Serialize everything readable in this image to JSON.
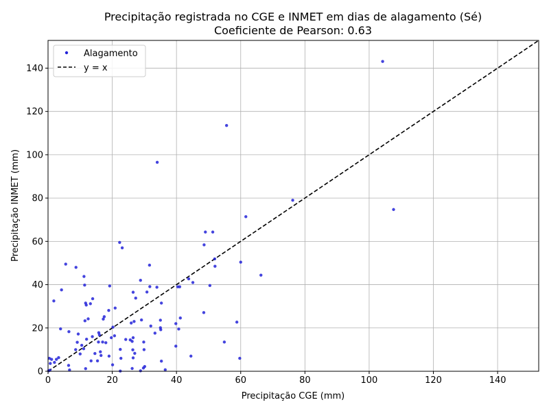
{
  "chart_data": {
    "type": "scatter",
    "title": "Precipitação registrada no CGE e INMET em dias de alagamento (Sé)",
    "subtitle": "Coeficiente de Pearson: 0.63",
    "xlabel": "Precipitação CGE (mm)",
    "ylabel": "Precipitação INMET (mm)",
    "xlim": [
      0,
      152.8
    ],
    "ylim": [
      0,
      152.8
    ],
    "xticks": [
      0,
      20,
      40,
      60,
      80,
      100,
      120,
      140
    ],
    "yticks": [
      0,
      20,
      40,
      60,
      80,
      100,
      120,
      140
    ],
    "grid": true,
    "legend_position": "top-left",
    "legend": [
      "Alagamento",
      "y = x"
    ],
    "colors": {
      "points": "#2323d8",
      "reference_line": "#000000",
      "grid": "#b0b0b0"
    },
    "reference_line": {
      "name": "y = x",
      "style": "dashed"
    },
    "series": [
      {
        "name": "Alagamento",
        "points": [
          [
            104.2,
            143.1
          ],
          [
            55.6,
            113.5
          ],
          [
            34.0,
            96.5
          ],
          [
            76.2,
            79.0
          ],
          [
            107.6,
            74.7
          ],
          [
            61.6,
            71.4
          ],
          [
            49.0,
            64.3
          ],
          [
            51.3,
            64.3
          ],
          [
            22.3,
            59.5
          ],
          [
            23.1,
            57.0
          ],
          [
            48.6,
            58.4
          ],
          [
            51.9,
            51.9
          ],
          [
            60.0,
            50.4
          ],
          [
            5.5,
            49.5
          ],
          [
            31.6,
            49.0
          ],
          [
            8.7,
            48.0
          ],
          [
            52.0,
            48.5
          ],
          [
            66.3,
            44.4
          ],
          [
            11.2,
            43.8
          ],
          [
            43.8,
            42.7
          ],
          [
            28.8,
            42.0
          ],
          [
            45.1,
            41.0
          ],
          [
            40.4,
            39.0
          ],
          [
            11.4,
            39.8
          ],
          [
            19.2,
            39.4
          ],
          [
            50.4,
            39.6
          ],
          [
            31.7,
            39.1
          ],
          [
            33.9,
            38.8
          ],
          [
            41.0,
            39.0
          ],
          [
            4.2,
            37.6
          ],
          [
            26.5,
            36.5
          ],
          [
            30.8,
            36.6
          ],
          [
            27.3,
            33.8
          ],
          [
            13.9,
            33.5
          ],
          [
            1.8,
            32.5
          ],
          [
            11.7,
            31.5
          ],
          [
            13.2,
            31.2
          ],
          [
            11.9,
            30.6
          ],
          [
            35.3,
            31.5
          ],
          [
            20.9,
            29.2
          ],
          [
            18.9,
            28.1
          ],
          [
            48.5,
            27.1
          ],
          [
            17.5,
            25.2
          ],
          [
            12.5,
            24.2
          ],
          [
            17.2,
            24.1
          ],
          [
            41.2,
            24.6
          ],
          [
            11.5,
            23.3
          ],
          [
            35.0,
            23.6
          ],
          [
            29.1,
            23.7
          ],
          [
            26.8,
            23.0
          ],
          [
            25.9,
            22.3
          ],
          [
            58.8,
            22.7
          ],
          [
            39.8,
            22.0
          ],
          [
            32.0,
            20.9
          ],
          [
            20.2,
            20.4
          ],
          [
            35.0,
            20.1
          ],
          [
            3.9,
            19.6
          ],
          [
            40.7,
            19.5
          ],
          [
            35.1,
            19.2
          ],
          [
            6.5,
            18.3
          ],
          [
            33.3,
            17.6
          ],
          [
            9.4,
            17.2
          ],
          [
            15.8,
            17.8
          ],
          [
            16.0,
            16.8
          ],
          [
            20.7,
            16.4
          ],
          [
            13.8,
            16.0
          ],
          [
            19.7,
            15.5
          ],
          [
            26.5,
            15.5
          ],
          [
            24.2,
            14.7
          ],
          [
            12.0,
            14.8
          ],
          [
            25.6,
            14.5
          ],
          [
            26.2,
            13.8
          ],
          [
            15.7,
            13.5
          ],
          [
            17.0,
            13.5
          ],
          [
            18.0,
            13.2
          ],
          [
            29.8,
            13.5
          ],
          [
            54.9,
            13.5
          ],
          [
            9.1,
            13.4
          ],
          [
            10.5,
            12.0
          ],
          [
            39.8,
            11.6
          ],
          [
            11.1,
            10.4
          ],
          [
            8.6,
            10.0
          ],
          [
            22.5,
            10.1
          ],
          [
            26.4,
            9.9
          ],
          [
            29.9,
            10.0
          ],
          [
            16.3,
            9.0
          ],
          [
            14.6,
            8.2
          ],
          [
            10.0,
            8.0
          ],
          [
            27.0,
            8.3
          ],
          [
            16.5,
            7.3
          ],
          [
            19.0,
            7.0
          ],
          [
            44.5,
            7.0
          ],
          [
            3.3,
            6.3
          ],
          [
            26.5,
            6.2
          ],
          [
            0.4,
            6.0
          ],
          [
            22.7,
            6.0
          ],
          [
            59.7,
            6.0
          ],
          [
            1.1,
            5.5
          ],
          [
            2.6,
            5.5
          ],
          [
            13.4,
            4.8
          ],
          [
            15.4,
            4.8
          ],
          [
            35.3,
            4.7
          ],
          [
            2.0,
            4.1
          ],
          [
            0.7,
            3.6
          ],
          [
            20.1,
            3.0
          ],
          [
            6.4,
            2.7
          ],
          [
            30.1,
            2.2
          ],
          [
            29.7,
            1.5
          ],
          [
            11.7,
            1.2
          ],
          [
            6.7,
            0.6
          ],
          [
            26.2,
            1.3
          ],
          [
            36.5,
            0.7
          ],
          [
            0.6,
            0.5
          ],
          [
            22.5,
            0.1
          ],
          [
            28.8,
            0.2
          ],
          [
            0.2,
            0.2
          ]
        ]
      }
    ]
  }
}
